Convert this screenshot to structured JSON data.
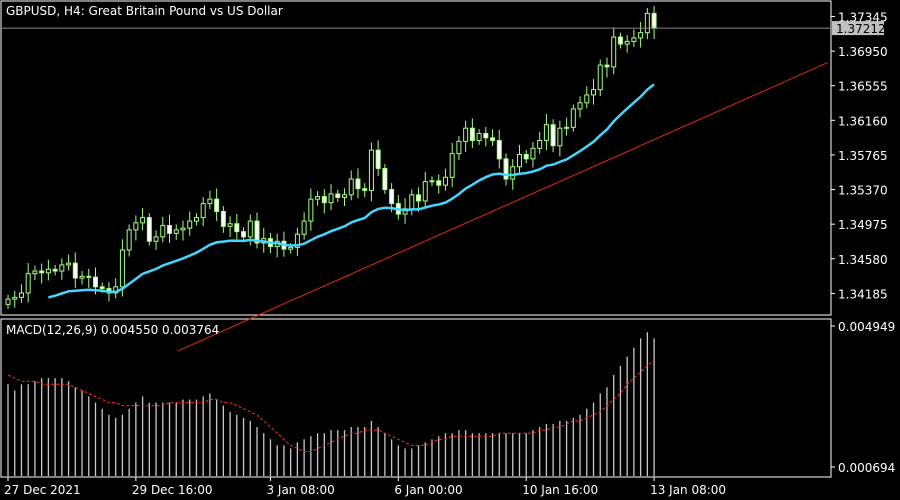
{
  "header": {
    "title": "GBPUSD, H4:  Great Britain Pound vs US Dollar"
  },
  "colors": {
    "background": "#000000",
    "frame": "#ffffff",
    "candle_up_body": "#000000",
    "candle_up_outline": "#a4ff80",
    "candle_down_body": "#ffffff",
    "ma_line": "#44d6ff",
    "trend_line": "#e0261e",
    "macd_hist": "#c8c8c8",
    "macd_signal": "#ff2a2a",
    "price_tag_bg": "#c0c0c0",
    "price_tag_text": "#000000"
  },
  "price_axis": {
    "ticks": [
      "1.37345",
      "1.36950",
      "1.36555",
      "1.36160",
      "1.35765",
      "1.35370",
      "1.34975",
      "1.34580",
      "1.34185"
    ],
    "current_price_label": "1.37212"
  },
  "macd": {
    "label": "MACD(12,26,9) 0.004550 0.003764",
    "ticks": [
      "0.004949",
      "0.000694"
    ]
  },
  "time_axis": {
    "ticks": [
      "27 Dec 2021",
      "29 Dec 16:00",
      "3 Jan 08:00",
      "6 Jan 00:00",
      "10 Jan 16:00",
      "13 Jan 08:00"
    ]
  },
  "chart_data": [
    {
      "type": "candlestick",
      "title": "GBPUSD, H4:  Great Britain Pound vs US Dollar",
      "ylim": [
        1.3395,
        1.3751
      ],
      "current_price": 1.37212,
      "x_ticks": [
        "27 Dec 2021",
        "29 Dec 16:00",
        "3 Jan 08:00",
        "6 Jan 00:00",
        "10 Jan 16:00",
        "13 Jan 08:00"
      ],
      "y_ticks": [
        1.37345,
        1.3695,
        1.36555,
        1.3616,
        1.35765,
        1.3537,
        1.34975,
        1.3458,
        1.34185
      ],
      "closes": [
        1.3412,
        1.3414,
        1.3419,
        1.3441,
        1.3444,
        1.3442,
        1.3446,
        1.3444,
        1.3451,
        1.3453,
        1.3436,
        1.3438,
        1.3437,
        1.3426,
        1.3424,
        1.3419,
        1.3426,
        1.3468,
        1.3491,
        1.3499,
        1.3505,
        1.3478,
        1.3483,
        1.3496,
        1.3487,
        1.3491,
        1.3493,
        1.3501,
        1.3505,
        1.3521,
        1.3526,
        1.3512,
        1.3495,
        1.3498,
        1.3489,
        1.3483,
        1.3501,
        1.3476,
        1.3481,
        1.3472,
        1.3478,
        1.3469,
        1.3471,
        1.3486,
        1.3501,
        1.3526,
        1.3529,
        1.3522,
        1.3532,
        1.3528,
        1.3531,
        1.3549,
        1.3538,
        1.3536,
        1.3582,
        1.3561,
        1.3537,
        1.3521,
        1.3509,
        1.3515,
        1.3531,
        1.3524,
        1.3546,
        1.3547,
        1.3542,
        1.3551,
        1.3578,
        1.3592,
        1.3607,
        1.3593,
        1.3601,
        1.3596,
        1.3593,
        1.3572,
        1.3549,
        1.3563,
        1.3577,
        1.3572,
        1.3584,
        1.3593,
        1.3611,
        1.3587,
        1.3607,
        1.3608,
        1.3629,
        1.3636,
        1.3645,
        1.3651,
        1.3679,
        1.3677,
        1.3711,
        1.3703,
        1.3706,
        1.371,
        1.3716,
        1.3738,
        1.3721
      ],
      "ma_period_note": "",
      "trend_line_price_start": 1.3353,
      "trend_line_price_end": 1.3682
    },
    {
      "type": "bar",
      "title": "MACD(12,26,9) 0.004550 0.003764",
      "ylim": [
        0.0001,
        0.0052
      ],
      "y_ticks": [
        0.004949,
        0.000694
      ],
      "macd_values": [
        0.0031,
        0.0029,
        0.0031,
        0.0031,
        0.0032,
        0.0033,
        0.0033,
        0.0033,
        0.0033,
        0.0032,
        0.003,
        0.0029,
        0.0027,
        0.0025,
        0.0023,
        0.0021,
        0.002,
        0.0021,
        0.0023,
        0.0025,
        0.0027,
        0.0025,
        0.0025,
        0.0025,
        0.0025,
        0.0025,
        0.0026,
        0.0026,
        0.0026,
        0.0027,
        0.0028,
        0.0026,
        0.0024,
        0.0022,
        0.0021,
        0.002,
        0.0019,
        0.0017,
        0.0015,
        0.0013,
        0.0011,
        0.0011,
        0.001,
        0.0012,
        0.0013,
        0.0014,
        0.0015,
        0.0015,
        0.0016,
        0.0016,
        0.0016,
        0.0017,
        0.0017,
        0.0017,
        0.0019,
        0.0017,
        0.0015,
        0.0013,
        0.0011,
        0.001,
        0.001,
        0.0011,
        0.0012,
        0.0013,
        0.0014,
        0.0015,
        0.0015,
        0.0016,
        0.0016,
        0.0015,
        0.0015,
        0.0015,
        0.0015,
        0.0015,
        0.0015,
        0.0015,
        0.0015,
        0.0015,
        0.0016,
        0.0017,
        0.0018,
        0.0018,
        0.0019,
        0.0019,
        0.002,
        0.0021,
        0.0023,
        0.0025,
        0.0028,
        0.003,
        0.0034,
        0.0037,
        0.004,
        0.0043,
        0.0046,
        0.0048,
        0.0046
      ],
      "signal_values": [
        0.0034,
        0.0033,
        0.0032,
        0.0032,
        0.0032,
        0.0031,
        0.0031,
        0.0031,
        0.0031,
        0.0031,
        0.003,
        0.0029,
        0.0028,
        0.0027,
        0.0026,
        0.0025,
        0.0025,
        0.0024,
        0.0024,
        0.0024,
        0.0024,
        0.0024,
        0.0024,
        0.0024,
        0.0025,
        0.0025,
        0.0025,
        0.0025,
        0.0025,
        0.0025,
        0.0026,
        0.0026,
        0.0025,
        0.0025,
        0.0024,
        0.0023,
        0.0022,
        0.0021,
        0.0019,
        0.0017,
        0.0015,
        0.0013,
        0.0011,
        0.001,
        0.0009,
        0.0009,
        0.001,
        0.0011,
        0.0012,
        0.0013,
        0.0014,
        0.0015,
        0.0015,
        0.0016,
        0.0016,
        0.0016,
        0.0015,
        0.0014,
        0.0013,
        0.0012,
        0.0011,
        0.0011,
        0.0011,
        0.0012,
        0.0013,
        0.0013,
        0.0014,
        0.0014,
        0.0014,
        0.0014,
        0.0014,
        0.0014,
        0.0014,
        0.0015,
        0.0015,
        0.0015,
        0.0015,
        0.0015,
        0.0015,
        0.0016,
        0.0016,
        0.0017,
        0.0017,
        0.0018,
        0.0019,
        0.0019,
        0.002,
        0.0021,
        0.0022,
        0.0024,
        0.0026,
        0.0028,
        0.0031,
        0.0033,
        0.0035,
        0.0037,
        0.0039
      ]
    }
  ]
}
